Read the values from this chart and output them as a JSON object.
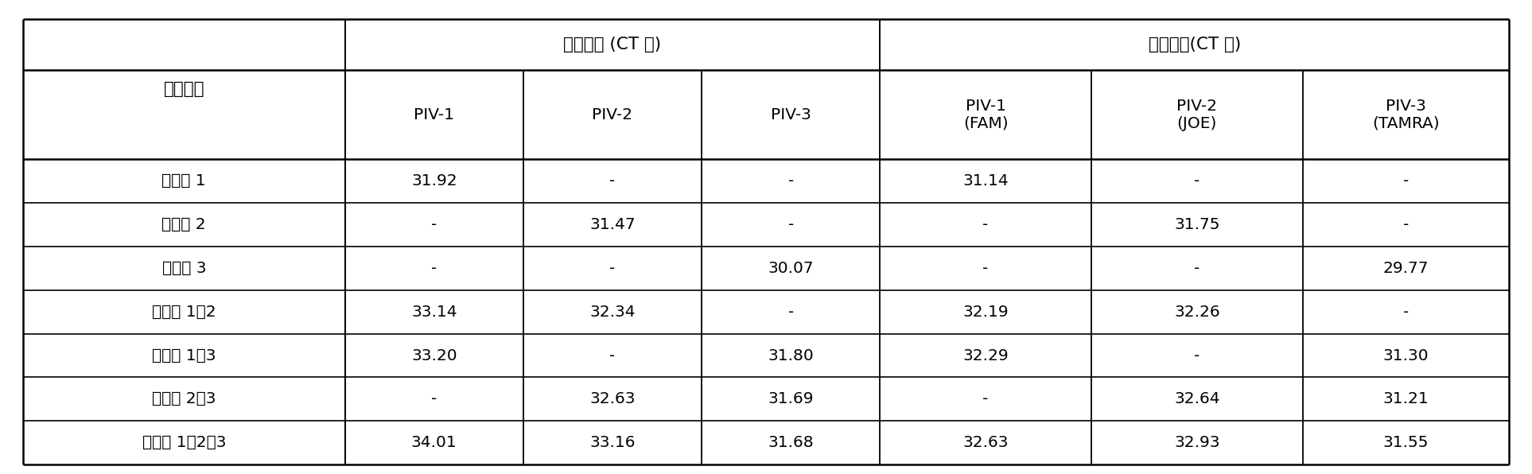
{
  "title_single": "单重试剂 (CT 値)",
  "title_multi": "多重试剂(CT 値)",
  "row_label_header": "阳性模板",
  "col_headers": [
    "PIV-1",
    "PIV-2",
    "PIV-3",
    "PIV-1\n(FAM)",
    "PIV-2\n(JOE)",
    "PIV-3\n(TAMRA)"
  ],
  "rows": [
    [
      "副流感 1",
      "31.92",
      "-",
      "-",
      "31.14",
      "-",
      "-"
    ],
    [
      "副流感 2",
      "-",
      "31.47",
      "-",
      "-",
      "31.75",
      "-"
    ],
    [
      "副流感 3",
      "-",
      "-",
      "30.07",
      "-",
      "-",
      "29.77"
    ],
    [
      "副流感 1、2",
      "33.14",
      "32.34",
      "-",
      "32.19",
      "32.26",
      "-"
    ],
    [
      "副流感 1、3",
      "33.20",
      "-",
      "31.80",
      "32.29",
      "-",
      "31.30"
    ],
    [
      "副流感 2、3",
      "-",
      "32.63",
      "31.69",
      "-",
      "32.64",
      "31.21"
    ],
    [
      "副流感 1、2、3",
      "34.01",
      "33.16",
      "31.68",
      "32.63",
      "32.93",
      "31.55"
    ]
  ],
  "bg_color": "#ffffff",
  "line_color": "#000000",
  "text_color": "#000000"
}
